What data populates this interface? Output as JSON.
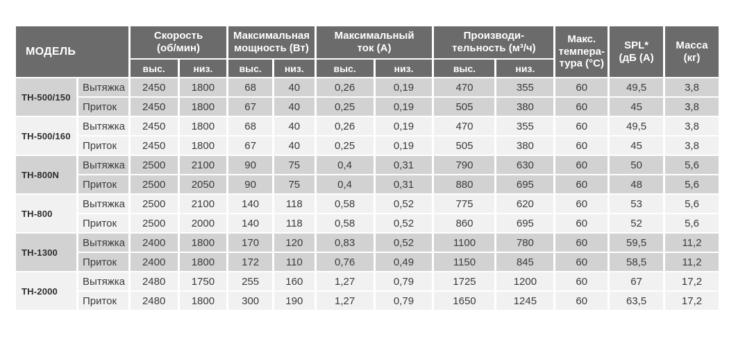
{
  "colors": {
    "header_bg": "#6b6b6b",
    "header_text": "#ffffff",
    "row_group_gray": "#d2d2d2",
    "row_group_light": "#f1f1f1",
    "body_text": "#3a3a3a",
    "page_bg": "#ffffff"
  },
  "table": {
    "header": {
      "model": "МОДЕЛЬ",
      "groups": [
        {
          "label": "Скорость\n(об/мин)",
          "sub": [
            "выс.",
            "низ."
          ]
        },
        {
          "label": "Максимальная\nмощность (Вт)",
          "sub": [
            "выс.",
            "низ."
          ]
        },
        {
          "label": "Максимальный\nток (А)",
          "sub": [
            "выс.",
            "низ."
          ]
        },
        {
          "label": "Производи-\nтельность (м³/ч)",
          "sub": [
            "выс.",
            "низ."
          ]
        }
      ],
      "singles": [
        "Макс.\nтемпера-\nтура (°С)",
        "SPL*\n(дБ (А)",
        "Масса\n(кг)"
      ]
    },
    "groups": [
      {
        "model": "ТН-500/150",
        "variants": [
          {
            "type": "Вытяжка",
            "values": [
              "2450",
              "1800",
              "68",
              "40",
              "0,26",
              "0,19",
              "470",
              "355",
              "60",
              "49,5",
              "3,8"
            ]
          },
          {
            "type": "Приток",
            "values": [
              "2450",
              "1800",
              "67",
              "40",
              "0,25",
              "0,19",
              "505",
              "380",
              "60",
              "45",
              "3,8"
            ]
          }
        ]
      },
      {
        "model": "ТН-500/160",
        "variants": [
          {
            "type": "Вытяжка",
            "values": [
              "2450",
              "1800",
              "68",
              "40",
              "0,26",
              "0,19",
              "470",
              "355",
              "60",
              "49,5",
              "3,8"
            ]
          },
          {
            "type": "Приток",
            "values": [
              "2450",
              "1800",
              "67",
              "40",
              "0,25",
              "0,19",
              "505",
              "380",
              "60",
              "45",
              "3,8"
            ]
          }
        ]
      },
      {
        "model": "ТН-800N",
        "variants": [
          {
            "type": "Вытяжка",
            "values": [
              "2500",
              "2100",
              "90",
              "75",
              "0,4",
              "0,31",
              "790",
              "630",
              "60",
              "50",
              "5,6"
            ]
          },
          {
            "type": "Приток",
            "values": [
              "2500",
              "2050",
              "90",
              "75",
              "0,4",
              "0,31",
              "880",
              "695",
              "60",
              "48",
              "5,6"
            ]
          }
        ]
      },
      {
        "model": "ТН-800",
        "variants": [
          {
            "type": "Вытяжка",
            "values": [
              "2500",
              "2100",
              "140",
              "118",
              "0,58",
              "0,52",
              "775",
              "620",
              "60",
              "53",
              "5,6"
            ]
          },
          {
            "type": "Приток",
            "values": [
              "2500",
              "2000",
              "140",
              "118",
              "0,58",
              "0,52",
              "860",
              "695",
              "60",
              "52",
              "5,6"
            ]
          }
        ]
      },
      {
        "model": "ТН-1300",
        "variants": [
          {
            "type": "Вытяжка",
            "values": [
              "2400",
              "1800",
              "170",
              "120",
              "0,83",
              "0,52",
              "1100",
              "780",
              "60",
              "59,5",
              "11,2"
            ]
          },
          {
            "type": "Приток",
            "values": [
              "2400",
              "1800",
              "172",
              "110",
              "0,76",
              "0,49",
              "1150",
              "845",
              "60",
              "58,5",
              "11,2"
            ]
          }
        ]
      },
      {
        "model": "ТН-2000",
        "variants": [
          {
            "type": "Вытяжка",
            "values": [
              "2480",
              "1750",
              "255",
              "160",
              "1,27",
              "0,79",
              "1725",
              "1200",
              "60",
              "67",
              "17,2"
            ]
          },
          {
            "type": "Приток",
            "values": [
              "2480",
              "1800",
              "300",
              "190",
              "1,27",
              "0,79",
              "1650",
              "1245",
              "60",
              "63,5",
              "17,2"
            ]
          }
        ]
      }
    ]
  }
}
